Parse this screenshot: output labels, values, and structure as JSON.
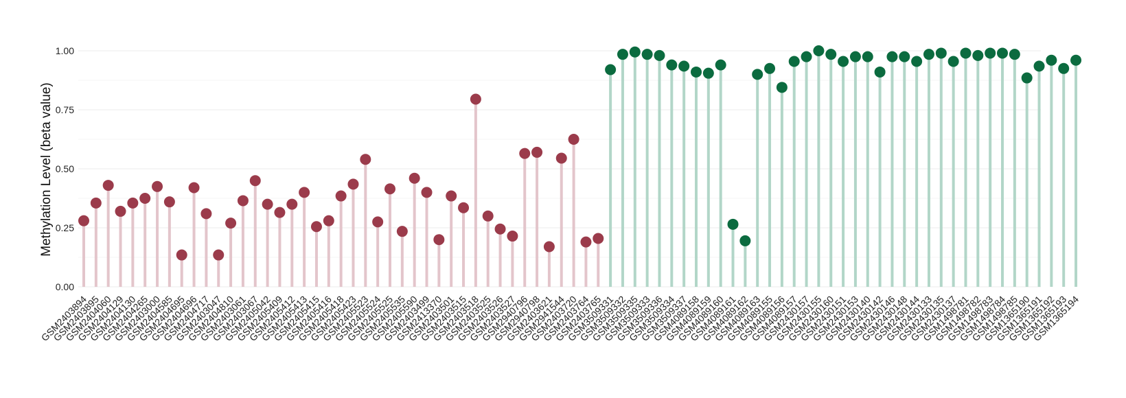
{
  "chart_data": {
    "type": "lollipop",
    "title": "",
    "xlabel": "",
    "ylabel": "Methylation Level (beta value)",
    "ylim": [
      0,
      1
    ],
    "yticks": [
      "0.00",
      "0.25",
      "0.50",
      "0.75",
      "1.00"
    ],
    "ytick_values": [
      0,
      0.25,
      0.5,
      0.75,
      1.0
    ],
    "grid": true,
    "legend": "none",
    "colors": {
      "group1_point": "#9b3b4b",
      "group1_stem": "#e3c5cb",
      "group2_point": "#0b6b3f",
      "group2_stem": "#b2d6c8"
    },
    "points": [
      {
        "x": "GSM2403894",
        "y": 0.28,
        "group": 1
      },
      {
        "x": "GSM2403895",
        "y": 0.355,
        "group": 1
      },
      {
        "x": "GSM2404060",
        "y": 0.43,
        "group": 1
      },
      {
        "x": "GSM2404129",
        "y": 0.32,
        "group": 1
      },
      {
        "x": "GSM2404130",
        "y": 0.355,
        "group": 1
      },
      {
        "x": "GSM2404265",
        "y": 0.375,
        "group": 1
      },
      {
        "x": "GSM2403000",
        "y": 0.425,
        "group": 1
      },
      {
        "x": "GSM2404585",
        "y": 0.36,
        "group": 1
      },
      {
        "x": "GSM2404695",
        "y": 0.135,
        "group": 1
      },
      {
        "x": "GSM2404696",
        "y": 0.42,
        "group": 1
      },
      {
        "x": "GSM2404717",
        "y": 0.31,
        "group": 1
      },
      {
        "x": "GSM2403047",
        "y": 0.135,
        "group": 1
      },
      {
        "x": "GSM2404810",
        "y": 0.27,
        "group": 1
      },
      {
        "x": "GSM2403061",
        "y": 0.365,
        "group": 1
      },
      {
        "x": "GSM2403067",
        "y": 0.45,
        "group": 1
      },
      {
        "x": "GSM2405042",
        "y": 0.35,
        "group": 1
      },
      {
        "x": "GSM2405409",
        "y": 0.315,
        "group": 1
      },
      {
        "x": "GSM2405412",
        "y": 0.35,
        "group": 1
      },
      {
        "x": "GSM2405413",
        "y": 0.4,
        "group": 1
      },
      {
        "x": "GSM2405415",
        "y": 0.255,
        "group": 1
      },
      {
        "x": "GSM2405416",
        "y": 0.28,
        "group": 1
      },
      {
        "x": "GSM2405418",
        "y": 0.385,
        "group": 1
      },
      {
        "x": "GSM2405423",
        "y": 0.435,
        "group": 1
      },
      {
        "x": "GSM2405523",
        "y": 0.54,
        "group": 1
      },
      {
        "x": "GSM2405524",
        "y": 0.275,
        "group": 1
      },
      {
        "x": "GSM2405525",
        "y": 0.415,
        "group": 1
      },
      {
        "x": "GSM2405535",
        "y": 0.235,
        "group": 1
      },
      {
        "x": "GSM2405590",
        "y": 0.46,
        "group": 1
      },
      {
        "x": "GSM2403499",
        "y": 0.4,
        "group": 1
      },
      {
        "x": "GSM2413370",
        "y": 0.2,
        "group": 1
      },
      {
        "x": "GSM2403501",
        "y": 0.385,
        "group": 1
      },
      {
        "x": "GSM2403515",
        "y": 0.335,
        "group": 1
      },
      {
        "x": "GSM2403518",
        "y": 0.795,
        "group": 1
      },
      {
        "x": "GSM2403525",
        "y": 0.3,
        "group": 1
      },
      {
        "x": "GSM2403526",
        "y": 0.245,
        "group": 1
      },
      {
        "x": "GSM2403527",
        "y": 0.215,
        "group": 1
      },
      {
        "x": "GSM2940796",
        "y": 0.565,
        "group": 1
      },
      {
        "x": "GSM2940798",
        "y": 0.57,
        "group": 1
      },
      {
        "x": "GSM2403621",
        "y": 0.17,
        "group": 1
      },
      {
        "x": "GSM2941544",
        "y": 0.545,
        "group": 1
      },
      {
        "x": "GSM2403720",
        "y": 0.625,
        "group": 1
      },
      {
        "x": "GSM2403764",
        "y": 0.19,
        "group": 1
      },
      {
        "x": "GSM2403765",
        "y": 0.205,
        "group": 1
      },
      {
        "x": "GSM3509331",
        "y": 0.92,
        "group": 2
      },
      {
        "x": "GSM3509332",
        "y": 0.985,
        "group": 2
      },
      {
        "x": "GSM3509335",
        "y": 0.995,
        "group": 2
      },
      {
        "x": "GSM3509333",
        "y": 0.985,
        "group": 2
      },
      {
        "x": "GSM3509336",
        "y": 0.98,
        "group": 2
      },
      {
        "x": "GSM3509334",
        "y": 0.94,
        "group": 2
      },
      {
        "x": "GSM3509337",
        "y": 0.935,
        "group": 2
      },
      {
        "x": "GSM4089158",
        "y": 0.91,
        "group": 2
      },
      {
        "x": "GSM4089159",
        "y": 0.905,
        "group": 2
      },
      {
        "x": "GSM4089160",
        "y": 0.94,
        "group": 2
      },
      {
        "x": "GSM4089161",
        "y": 0.265,
        "group": 2
      },
      {
        "x": "GSM4089162",
        "y": 0.195,
        "group": 2
      },
      {
        "x": "GSM4089163",
        "y": 0.9,
        "group": 2
      },
      {
        "x": "GSM4089155",
        "y": 0.925,
        "group": 2
      },
      {
        "x": "GSM4089156",
        "y": 0.845,
        "group": 2
      },
      {
        "x": "GSM4089157",
        "y": 0.955,
        "group": 2
      },
      {
        "x": "GSM2430157",
        "y": 0.975,
        "group": 2
      },
      {
        "x": "GSM2430155",
        "y": 1.0,
        "group": 2
      },
      {
        "x": "GSM2430160",
        "y": 0.985,
        "group": 2
      },
      {
        "x": "GSM2430151",
        "y": 0.955,
        "group": 2
      },
      {
        "x": "GSM2430153",
        "y": 0.975,
        "group": 2
      },
      {
        "x": "GSM2430140",
        "y": 0.975,
        "group": 2
      },
      {
        "x": "GSM2430142",
        "y": 0.91,
        "group": 2
      },
      {
        "x": "GSM2430146",
        "y": 0.975,
        "group": 2
      },
      {
        "x": "GSM2430148",
        "y": 0.975,
        "group": 2
      },
      {
        "x": "GSM2430144",
        "y": 0.955,
        "group": 2
      },
      {
        "x": "GSM2430133",
        "y": 0.985,
        "group": 2
      },
      {
        "x": "GSM2430135",
        "y": 0.99,
        "group": 2
      },
      {
        "x": "GSM2430137",
        "y": 0.955,
        "group": 2
      },
      {
        "x": "GSM1498781",
        "y": 0.99,
        "group": 2
      },
      {
        "x": "GSM1498782",
        "y": 0.98,
        "group": 2
      },
      {
        "x": "GSM1498783",
        "y": 0.99,
        "group": 2
      },
      {
        "x": "GSM1498784",
        "y": 0.99,
        "group": 2
      },
      {
        "x": "GSM1498785",
        "y": 0.985,
        "group": 2
      },
      {
        "x": "GSM1365190",
        "y": 0.885,
        "group": 2
      },
      {
        "x": "GSM1365191",
        "y": 0.935,
        "group": 2
      },
      {
        "x": "GSM1365192",
        "y": 0.96,
        "group": 2
      },
      {
        "x": "GSM1365193",
        "y": 0.925,
        "group": 2
      },
      {
        "x": "GSM1365194",
        "y": 0.96,
        "group": 2
      }
    ]
  }
}
